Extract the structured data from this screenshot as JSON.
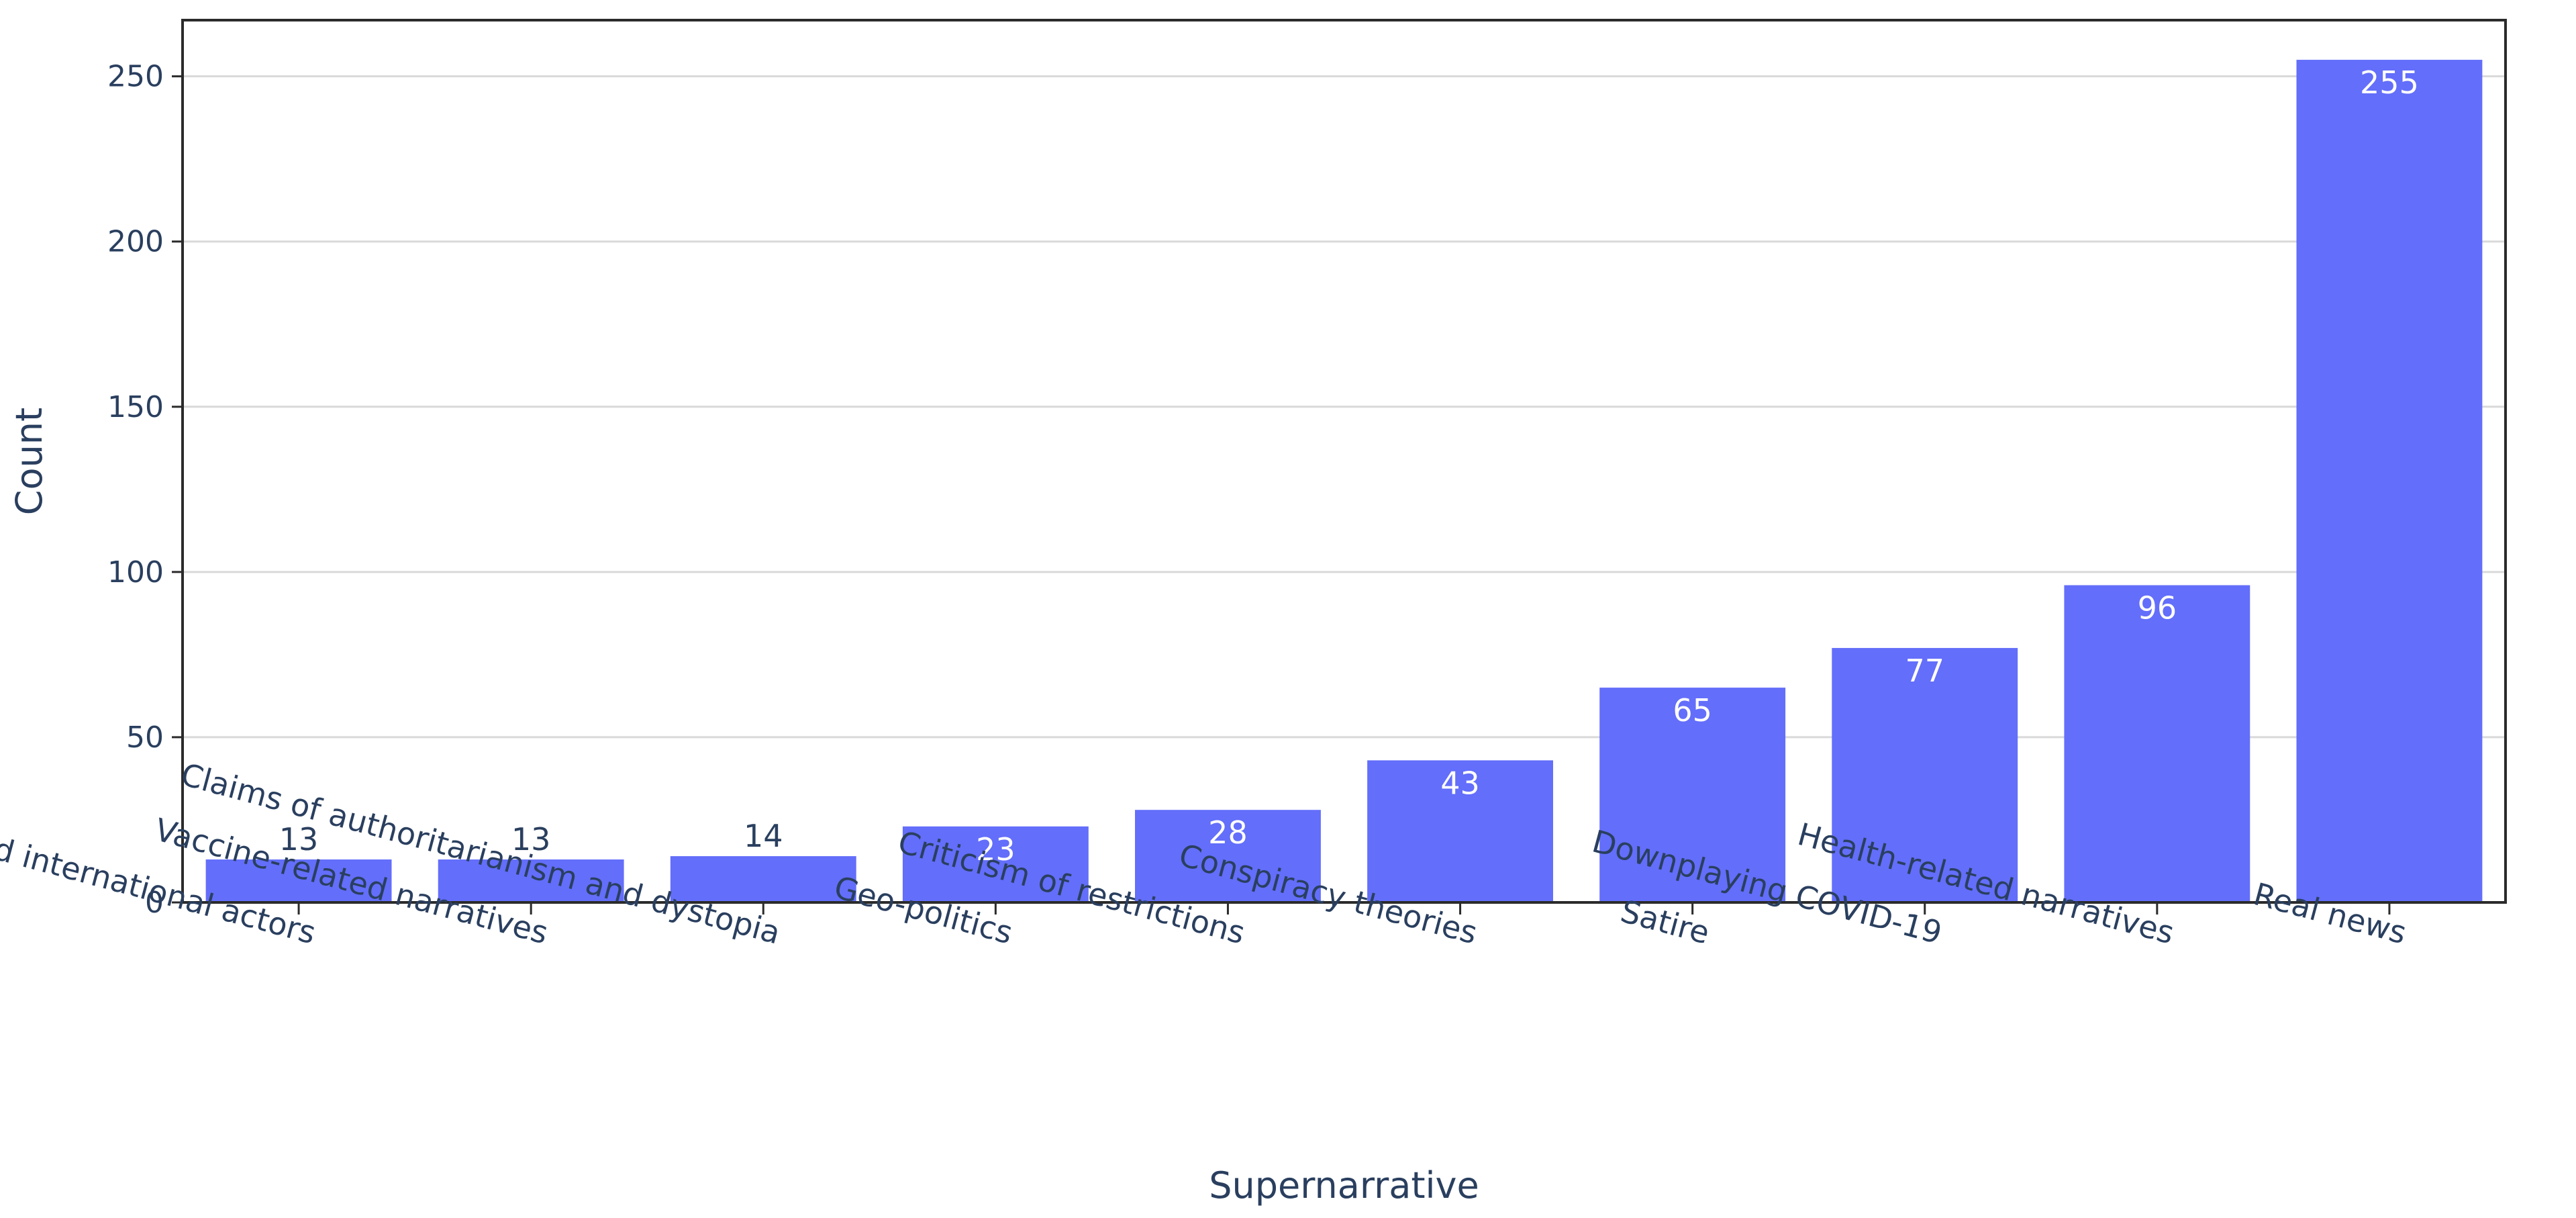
{
  "chart_data": {
    "type": "bar",
    "title": "",
    "xlabel": "Supernarrative",
    "ylabel": "Count",
    "ylim": [
      0,
      267
    ],
    "yticks": [
      0,
      50,
      100,
      150,
      200,
      250
    ],
    "grid": true,
    "legend": "none",
    "bar_color": "#636efa",
    "categories": [
      "Criticism of the national and international actors",
      "Vaccine-related narratives",
      "Claims of authoritarianism and dystopia",
      "Geo-politics",
      "Criticism of restrictions",
      "Conspiracy theories",
      "Satire",
      "Downplaying COVID-19",
      "Health-related narratives",
      "Real news"
    ],
    "values": [
      13,
      13,
      14,
      23,
      28,
      43,
      65,
      77,
      96,
      255
    ]
  }
}
